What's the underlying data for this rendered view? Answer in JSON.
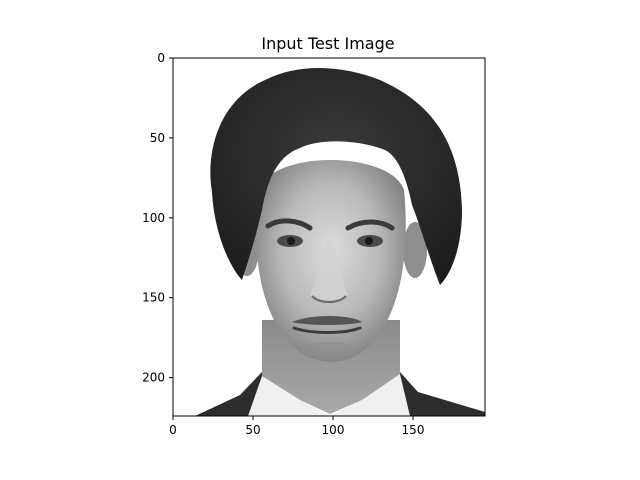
{
  "figure": {
    "title": "Input Test Image"
  },
  "image": {
    "content": "grayscale-face-photo",
    "background": "#ffffff",
    "hair_color": "#2a2a2a",
    "skin_light": "#d8d8d8",
    "skin_mid": "#a8a8a8",
    "skin_dark": "#6a6a6a",
    "shirt_color": "#f2f2f2",
    "jacket_color": "#2c2c2c"
  },
  "axes": {
    "x_ticks": [
      {
        "value": 0,
        "label": "0"
      },
      {
        "value": 50,
        "label": "50"
      },
      {
        "value": 100,
        "label": "100"
      },
      {
        "value": 150,
        "label": "150"
      }
    ],
    "y_ticks": [
      {
        "value": 0,
        "label": "0"
      },
      {
        "value": 50,
        "label": "50"
      },
      {
        "value": 100,
        "label": "100"
      },
      {
        "value": 150,
        "label": "150"
      },
      {
        "value": 200,
        "label": "200"
      }
    ],
    "x_range": [
      0,
      195
    ],
    "y_range": [
      0,
      224
    ]
  }
}
